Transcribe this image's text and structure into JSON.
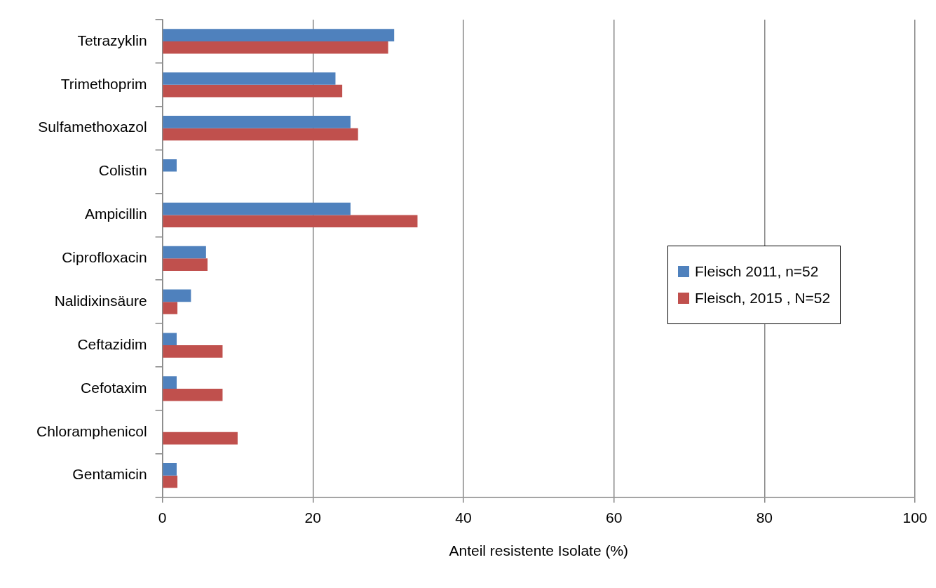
{
  "chart_data": {
    "type": "bar",
    "orientation": "horizontal",
    "xlabel": "Anteil resistente Isolate (%)",
    "categories": [
      "Tetrazyklin",
      "Trimethoprim",
      "Sulfamethoxazol",
      "Colistin",
      "Ampicillin",
      "Ciprofloxacin",
      "Nalidixinsäure",
      "Ceftazidim",
      "Cefotaxim",
      "Chloramphenicol",
      "Gentamicin"
    ],
    "series": [
      {
        "name": "Fleisch 2011, n=52",
        "color": "#4f81bd",
        "values": [
          30.8,
          23.0,
          25.0,
          1.9,
          25.0,
          5.8,
          3.8,
          1.9,
          1.9,
          0,
          1.9
        ]
      },
      {
        "name": "Fleisch, 2015 , N=52",
        "color": "#c0504d",
        "values": [
          30.0,
          23.9,
          26.0,
          0,
          33.9,
          6.0,
          2.0,
          8.0,
          8.0,
          10.0,
          2.0
        ]
      }
    ],
    "xlim": [
      0,
      100
    ],
    "xticks": [
      0,
      20,
      40,
      60,
      80,
      100
    ],
    "grid": "x",
    "legend": "right"
  }
}
